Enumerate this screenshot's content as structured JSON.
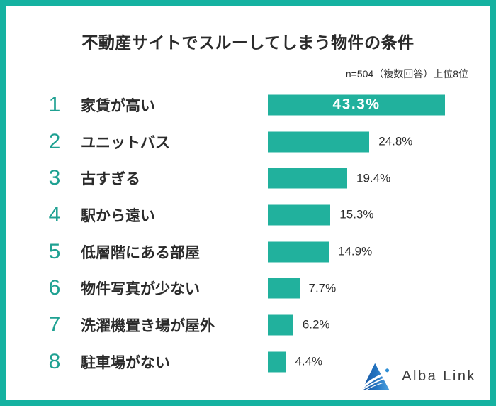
{
  "header": {
    "title": "不動産サイトでスルーしてしまう物件の条件",
    "note": "n=504（複数回答）上位8位"
  },
  "chart_data": {
    "type": "bar",
    "orientation": "horizontal",
    "title": "不動産サイトでスルーしてしまう物件の条件",
    "sample_note": "n=504（複数回答）上位8位",
    "unit": "%",
    "xlim": [
      0,
      45
    ],
    "grid": false,
    "legend": false,
    "categories": [
      "家賃が高い",
      "ユニットバス",
      "古すぎる",
      "駅から遠い",
      "低層階にある部屋",
      "物件写真が少ない",
      "洗濯機置き場が屋外",
      "駐車場がない"
    ],
    "values": [
      43.3,
      24.8,
      19.4,
      15.3,
      14.9,
      7.7,
      6.2,
      4.4
    ],
    "items": [
      {
        "rank": 1,
        "label": "家賃が高い",
        "value": 43.3,
        "display": "43.3%",
        "value_label_position": "inside"
      },
      {
        "rank": 2,
        "label": "ユニットバス",
        "value": 24.8,
        "display": "24.8%",
        "value_label_position": "outside"
      },
      {
        "rank": 3,
        "label": "古すぎる",
        "value": 19.4,
        "display": "19.4%",
        "value_label_position": "outside"
      },
      {
        "rank": 4,
        "label": "駅から遠い",
        "value": 15.3,
        "display": "15.3%",
        "value_label_position": "outside"
      },
      {
        "rank": 5,
        "label": "低層階にある部屋",
        "value": 14.9,
        "display": "14.9%",
        "value_label_position": "outside"
      },
      {
        "rank": 6,
        "label": "物件写真が少ない",
        "value": 7.7,
        "display": "7.7%",
        "value_label_position": "outside"
      },
      {
        "rank": 7,
        "label": "洗濯機置き場が屋外",
        "value": 6.2,
        "display": "6.2%",
        "value_label_position": "outside"
      },
      {
        "rank": 8,
        "label": "駐車場がない",
        "value": 4.4,
        "display": "4.4%",
        "value_label_position": "outside"
      }
    ],
    "colors": {
      "bar": "#21b19d",
      "rank_number": "#1fa192",
      "frame_border": "#15b2a1",
      "inside_value_text": "#ffffff",
      "outside_value_text": "#2e2e2e",
      "label_text": "#2b2b2b"
    }
  },
  "footer": {
    "logo_text": "Alba Link",
    "logo_icon": "mountain-triangle-logo",
    "logo_colors": {
      "dark_blue": "#1a5cab",
      "light_blue": "#4aa0e0",
      "dot": "#2e8fd6"
    }
  }
}
